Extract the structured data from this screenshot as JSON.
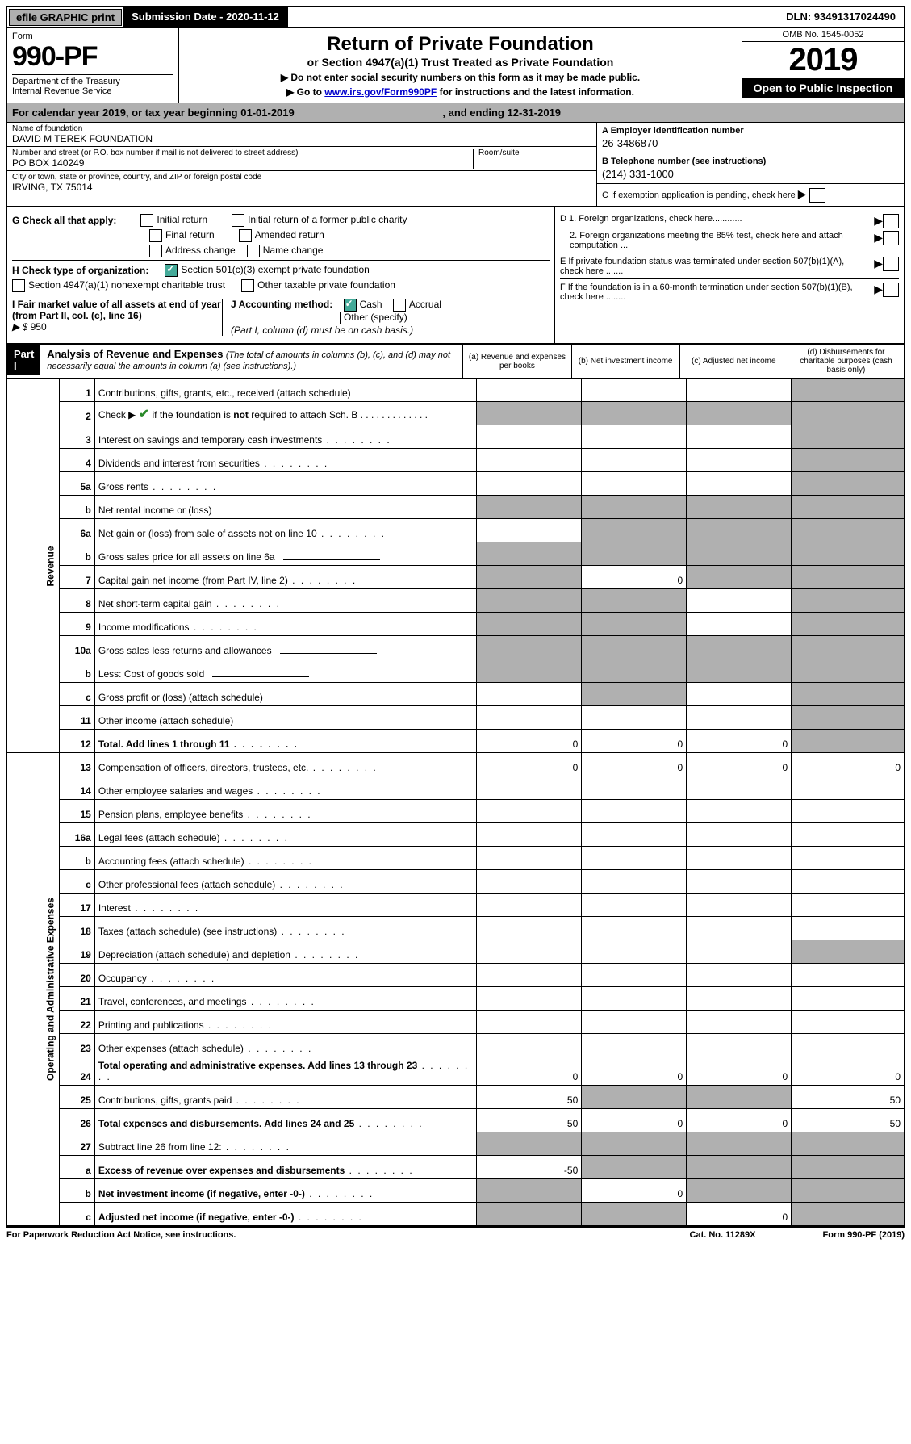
{
  "topbar": {
    "efile": "efile GRAPHIC print",
    "submission": "Submission Date - 2020-11-12",
    "dln": "DLN: 93491317024490"
  },
  "header": {
    "form_word": "Form",
    "form_number": "990-PF",
    "dept": "Department of the Treasury\nInternal Revenue Service",
    "title": "Return of Private Foundation",
    "subtitle": "or Section 4947(a)(1) Trust Treated as Private Foundation",
    "instr1": "▶ Do not enter social security numbers on this form as it may be made public.",
    "instr2_pre": "▶ Go to ",
    "instr2_link": "www.irs.gov/Form990PF",
    "instr2_post": " for instructions and the latest information.",
    "omb": "OMB No. 1545-0052",
    "year": "2019",
    "open": "Open to Public Inspection"
  },
  "calendar": {
    "text_pre": "For calendar year 2019, or tax year beginning ",
    "begin": "01-01-2019",
    "mid": " , and ending ",
    "end": "12-31-2019"
  },
  "identity": {
    "name_label": "Name of foundation",
    "name": "DAVID M TEREK FOUNDATION",
    "addr_label": "Number and street (or P.O. box number if mail is not delivered to street address)",
    "addr": "PO BOX 140249",
    "room_label": "Room/suite",
    "city_label": "City or town, state or province, country, and ZIP or foreign postal code",
    "city": "IRVING, TX  75014",
    "ein_label": "A Employer identification number",
    "ein": "26-3486870",
    "phone_label": "B Telephone number (see instructions)",
    "phone": "(214) 331-1000",
    "c_label": "C If exemption application is pending, check here"
  },
  "checks": {
    "g_label": "G Check all that apply:",
    "g_opts": [
      "Initial return",
      "Initial return of a former public charity",
      "Final return",
      "Amended return",
      "Address change",
      "Name change"
    ],
    "h_label": "H Check type of organization:",
    "h_opt1": "Section 501(c)(3) exempt private foundation",
    "h_opt2": "Section 4947(a)(1) nonexempt charitable trust",
    "h_opt3": "Other taxable private foundation",
    "i_label": "I Fair market value of all assets at end of year (from Part II, col. (c), line 16)",
    "i_prefix": "▶ $",
    "i_value": "950",
    "j_label": "J Accounting method:",
    "j_cash": "Cash",
    "j_accrual": "Accrual",
    "j_other": "Other (specify)",
    "j_note": "(Part I, column (d) must be on cash basis.)",
    "d1": "D 1. Foreign organizations, check here............",
    "d2": "2. Foreign organizations meeting the 85% test, check here and attach computation ...",
    "e": "E If private foundation status was terminated under section 507(b)(1)(A), check here .......",
    "f": "F If the foundation is in a 60-month termination under section 507(b)(1)(B), check here ........"
  },
  "part1": {
    "label": "Part I",
    "title": "Analysis of Revenue and Expenses",
    "note": "(The total of amounts in columns (b), (c), and (d) may not necessarily equal the amounts in column (a) (see instructions).)",
    "col_a": "(a) Revenue and expenses per books",
    "col_b": "(b) Net investment income",
    "col_c": "(c) Adjusted net income",
    "col_d": "(d) Disbursements for charitable purposes (cash basis only)"
  },
  "side": {
    "revenue": "Revenue",
    "expenses": "Operating and Administrative Expenses"
  },
  "rows": [
    {
      "n": "1",
      "d": "Contributions, gifts, grants, etc., received (attach schedule)",
      "shade_d": true
    },
    {
      "n": "2",
      "d": "Check ▶ ✔ if the foundation is not required to attach Sch. B",
      "shade_a": true,
      "shade_b": true,
      "shade_c": true,
      "shade_d": true,
      "bold_not": true
    },
    {
      "n": "3",
      "d": "Interest on savings and temporary cash investments",
      "shade_d": true
    },
    {
      "n": "4",
      "d": "Dividends and interest from securities",
      "shade_d": true
    },
    {
      "n": "5a",
      "d": "Gross rents",
      "shade_d": true
    },
    {
      "n": "b",
      "d": "Net rental income or (loss)",
      "shade_a": true,
      "shade_b": true,
      "shade_c": true,
      "shade_d": true,
      "inline_box": true
    },
    {
      "n": "6a",
      "d": "Net gain or (loss) from sale of assets not on line 10",
      "shade_b": true,
      "shade_c": true,
      "shade_d": true
    },
    {
      "n": "b",
      "d": "Gross sales price for all assets on line 6a",
      "shade_a": true,
      "shade_b": true,
      "shade_c": true,
      "shade_d": true,
      "inline_box": true
    },
    {
      "n": "7",
      "d": "Capital gain net income (from Part IV, line 2)",
      "shade_a": true,
      "b": "0",
      "shade_c": true,
      "shade_d": true
    },
    {
      "n": "8",
      "d": "Net short-term capital gain",
      "shade_a": true,
      "shade_b": true,
      "shade_d": true
    },
    {
      "n": "9",
      "d": "Income modifications",
      "shade_a": true,
      "shade_b": true,
      "shade_d": true
    },
    {
      "n": "10a",
      "d": "Gross sales less returns and allowances",
      "shade_a": true,
      "shade_b": true,
      "shade_c": true,
      "shade_d": true,
      "inline_box": true
    },
    {
      "n": "b",
      "d": "Less: Cost of goods sold",
      "shade_a": true,
      "shade_b": true,
      "shade_c": true,
      "shade_d": true,
      "inline_box": true
    },
    {
      "n": "c",
      "d": "Gross profit or (loss) (attach schedule)",
      "shade_b": true,
      "shade_d": true
    },
    {
      "n": "11",
      "d": "Other income (attach schedule)",
      "shade_d": true
    },
    {
      "n": "12",
      "d": "Total. Add lines 1 through 11",
      "bold": true,
      "a": "0",
      "b": "0",
      "c": "0",
      "shade_d": true
    }
  ],
  "exp_rows": [
    {
      "n": "13",
      "d": "Compensation of officers, directors, trustees, etc.",
      "a": "0",
      "b": "0",
      "c": "0",
      "dd": "0"
    },
    {
      "n": "14",
      "d": "Other employee salaries and wages"
    },
    {
      "n": "15",
      "d": "Pension plans, employee benefits"
    },
    {
      "n": "16a",
      "d": "Legal fees (attach schedule)"
    },
    {
      "n": "b",
      "d": "Accounting fees (attach schedule)"
    },
    {
      "n": "c",
      "d": "Other professional fees (attach schedule)"
    },
    {
      "n": "17",
      "d": "Interest"
    },
    {
      "n": "18",
      "d": "Taxes (attach schedule) (see instructions)"
    },
    {
      "n": "19",
      "d": "Depreciation (attach schedule) and depletion",
      "shade_d": true
    },
    {
      "n": "20",
      "d": "Occupancy"
    },
    {
      "n": "21",
      "d": "Travel, conferences, and meetings"
    },
    {
      "n": "22",
      "d": "Printing and publications"
    },
    {
      "n": "23",
      "d": "Other expenses (attach schedule)"
    },
    {
      "n": "24",
      "d": "Total operating and administrative expenses. Add lines 13 through 23",
      "bold": true,
      "a": "0",
      "b": "0",
      "c": "0",
      "dd": "0"
    },
    {
      "n": "25",
      "d": "Contributions, gifts, grants paid",
      "a": "50",
      "shade_b": true,
      "shade_c": true,
      "dd": "50"
    },
    {
      "n": "26",
      "d": "Total expenses and disbursements. Add lines 24 and 25",
      "bold": true,
      "a": "50",
      "b": "0",
      "c": "0",
      "dd": "50"
    },
    {
      "n": "27",
      "d": "Subtract line 26 from line 12:",
      "shade_a": true,
      "shade_b": true,
      "shade_c": true,
      "shade_d": true
    },
    {
      "n": "a",
      "d": "Excess of revenue over expenses and disbursements",
      "bold": true,
      "a": "-50",
      "shade_b": true,
      "shade_c": true,
      "shade_d": true
    },
    {
      "n": "b",
      "d": "Net investment income (if negative, enter -0-)",
      "bold": true,
      "shade_a": true,
      "b": "0",
      "shade_c": true,
      "shade_d": true
    },
    {
      "n": "c",
      "d": "Adjusted net income (if negative, enter -0-)",
      "bold": true,
      "shade_a": true,
      "shade_b": true,
      "c": "0",
      "shade_d": true
    }
  ],
  "footer": {
    "left": "For Paperwork Reduction Act Notice, see instructions.",
    "mid": "Cat. No. 11289X",
    "right": "Form 990-PF (2019)"
  }
}
